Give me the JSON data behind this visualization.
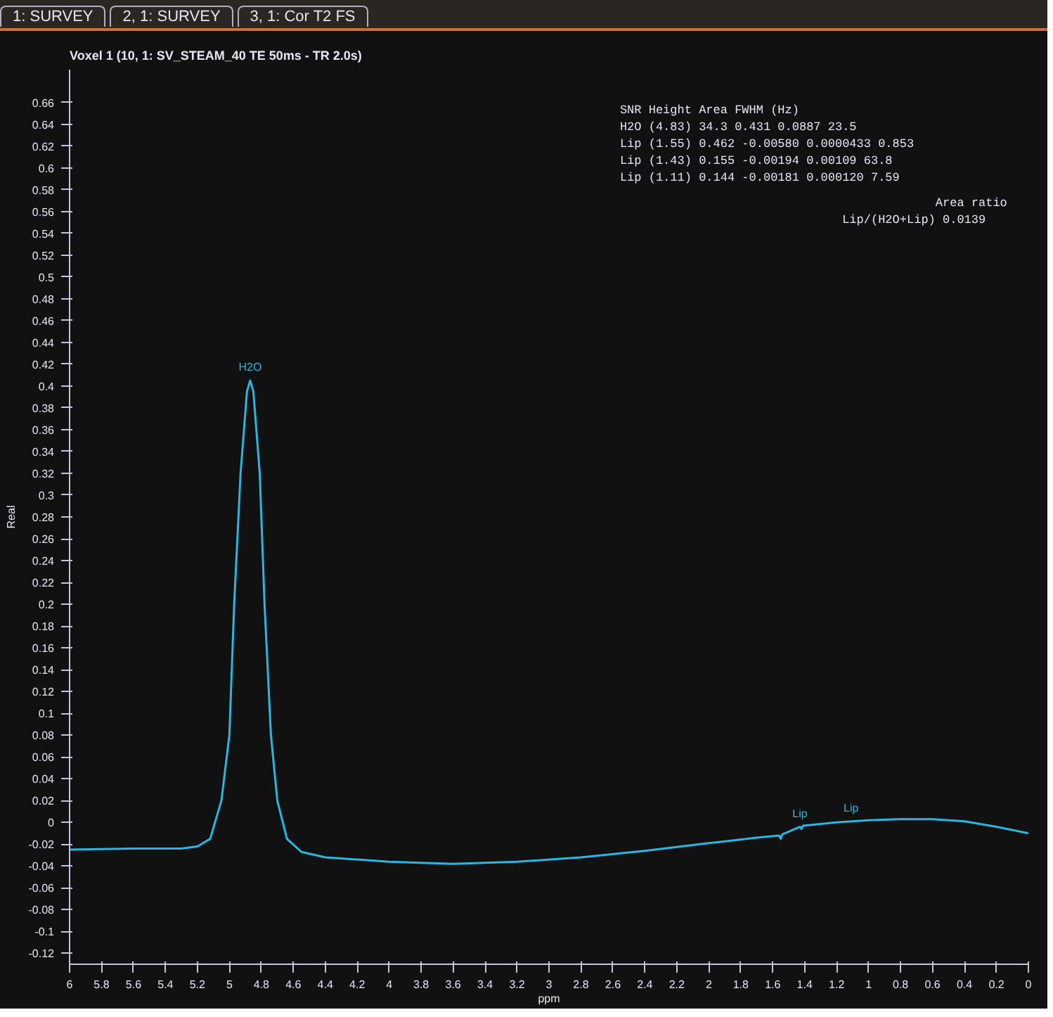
{
  "chart_data": {
    "type": "line",
    "title": "Voxel 1 (10, 1: SV_STEAM_40 TE  50ms - TR 2.0s)",
    "xlabel": "ppm",
    "ylabel": "Real",
    "x": [
      6.0,
      5.6,
      5.3,
      5.2,
      5.12,
      5.05,
      5.0,
      4.97,
      4.93,
      4.89,
      4.87,
      4.85,
      4.81,
      4.78,
      4.74,
      4.7,
      4.64,
      4.55,
      4.4,
      4.0,
      3.6,
      3.2,
      2.8,
      2.4,
      2.0,
      1.7,
      1.56,
      1.55,
      1.54,
      1.43,
      1.42,
      1.41,
      1.2,
      1.0,
      0.8,
      0.6,
      0.4,
      0.2,
      0.0
    ],
    "series": [
      {
        "color": "#29b6e0",
        "values": [
          -0.025,
          -0.024,
          -0.024,
          -0.022,
          -0.015,
          0.02,
          0.08,
          0.2,
          0.32,
          0.395,
          0.405,
          0.395,
          0.32,
          0.2,
          0.08,
          0.02,
          -0.015,
          -0.027,
          -0.032,
          -0.036,
          -0.038,
          -0.036,
          -0.032,
          -0.026,
          -0.019,
          -0.014,
          -0.012,
          -0.015,
          -0.011,
          -0.004,
          -0.006,
          -0.003,
          0.0,
          0.002,
          0.003,
          0.003,
          0.001,
          -0.004,
          -0.01
        ]
      }
    ],
    "xlim": [
      6,
      0
    ],
    "ylim": [
      -0.13,
      0.69
    ],
    "xticks": [
      6,
      5.8,
      5.6,
      5.4,
      5.2,
      5,
      4.8,
      4.6,
      4.4,
      4.2,
      4,
      3.8,
      3.6,
      3.4,
      3.2,
      3,
      2.8,
      2.6,
      2.4,
      2.2,
      2,
      1.8,
      1.6,
      1.4,
      1.2,
      1,
      0.8,
      0.6,
      0.4,
      0.2,
      0
    ],
    "yticks": [
      -0.12,
      -0.1,
      -0.08,
      -0.06,
      -0.04,
      -0.02,
      0,
      0.02,
      0.04,
      0.06,
      0.08,
      0.1,
      0.12,
      0.14,
      0.16,
      0.18,
      0.2,
      0.22,
      0.24,
      0.26,
      0.28,
      0.3,
      0.32,
      0.34,
      0.36,
      0.38,
      0.4,
      0.42,
      0.44,
      0.46,
      0.48,
      0.5,
      0.52,
      0.54,
      0.56,
      0.58,
      0.6,
      0.62,
      0.64,
      0.66
    ],
    "grid": false,
    "marker": "none",
    "line_style": "solid",
    "annotations": [
      "1: SURVEY",
      "2, 1: SURVEY",
      "3, 1: Cor T2 FS",
      "  SNR  Height  Area  FWHM (Hz)",
      "H2O (4.83)  34.3  0.431  0.0887  23.5",
      "Lip (1.55)  0.462  -0.00580  0.0000433  0.853",
      "Lip (1.43)  0.155  -0.00194  0.00109  63.8",
      "Lip (1.11)  0.144  -0.00181  0.000120  7.59",
      "Area ratio",
      "Lip/(H2O+Lip)  0.0139",
      {
        "text": "H2O",
        "x": 4.87,
        "y": 0.405
      },
      {
        "text": "Lip",
        "x": 1.43,
        "y": -0.004
      },
      {
        "text": "Lip",
        "x": 1.11,
        "y": 0.001
      }
    ]
  }
}
